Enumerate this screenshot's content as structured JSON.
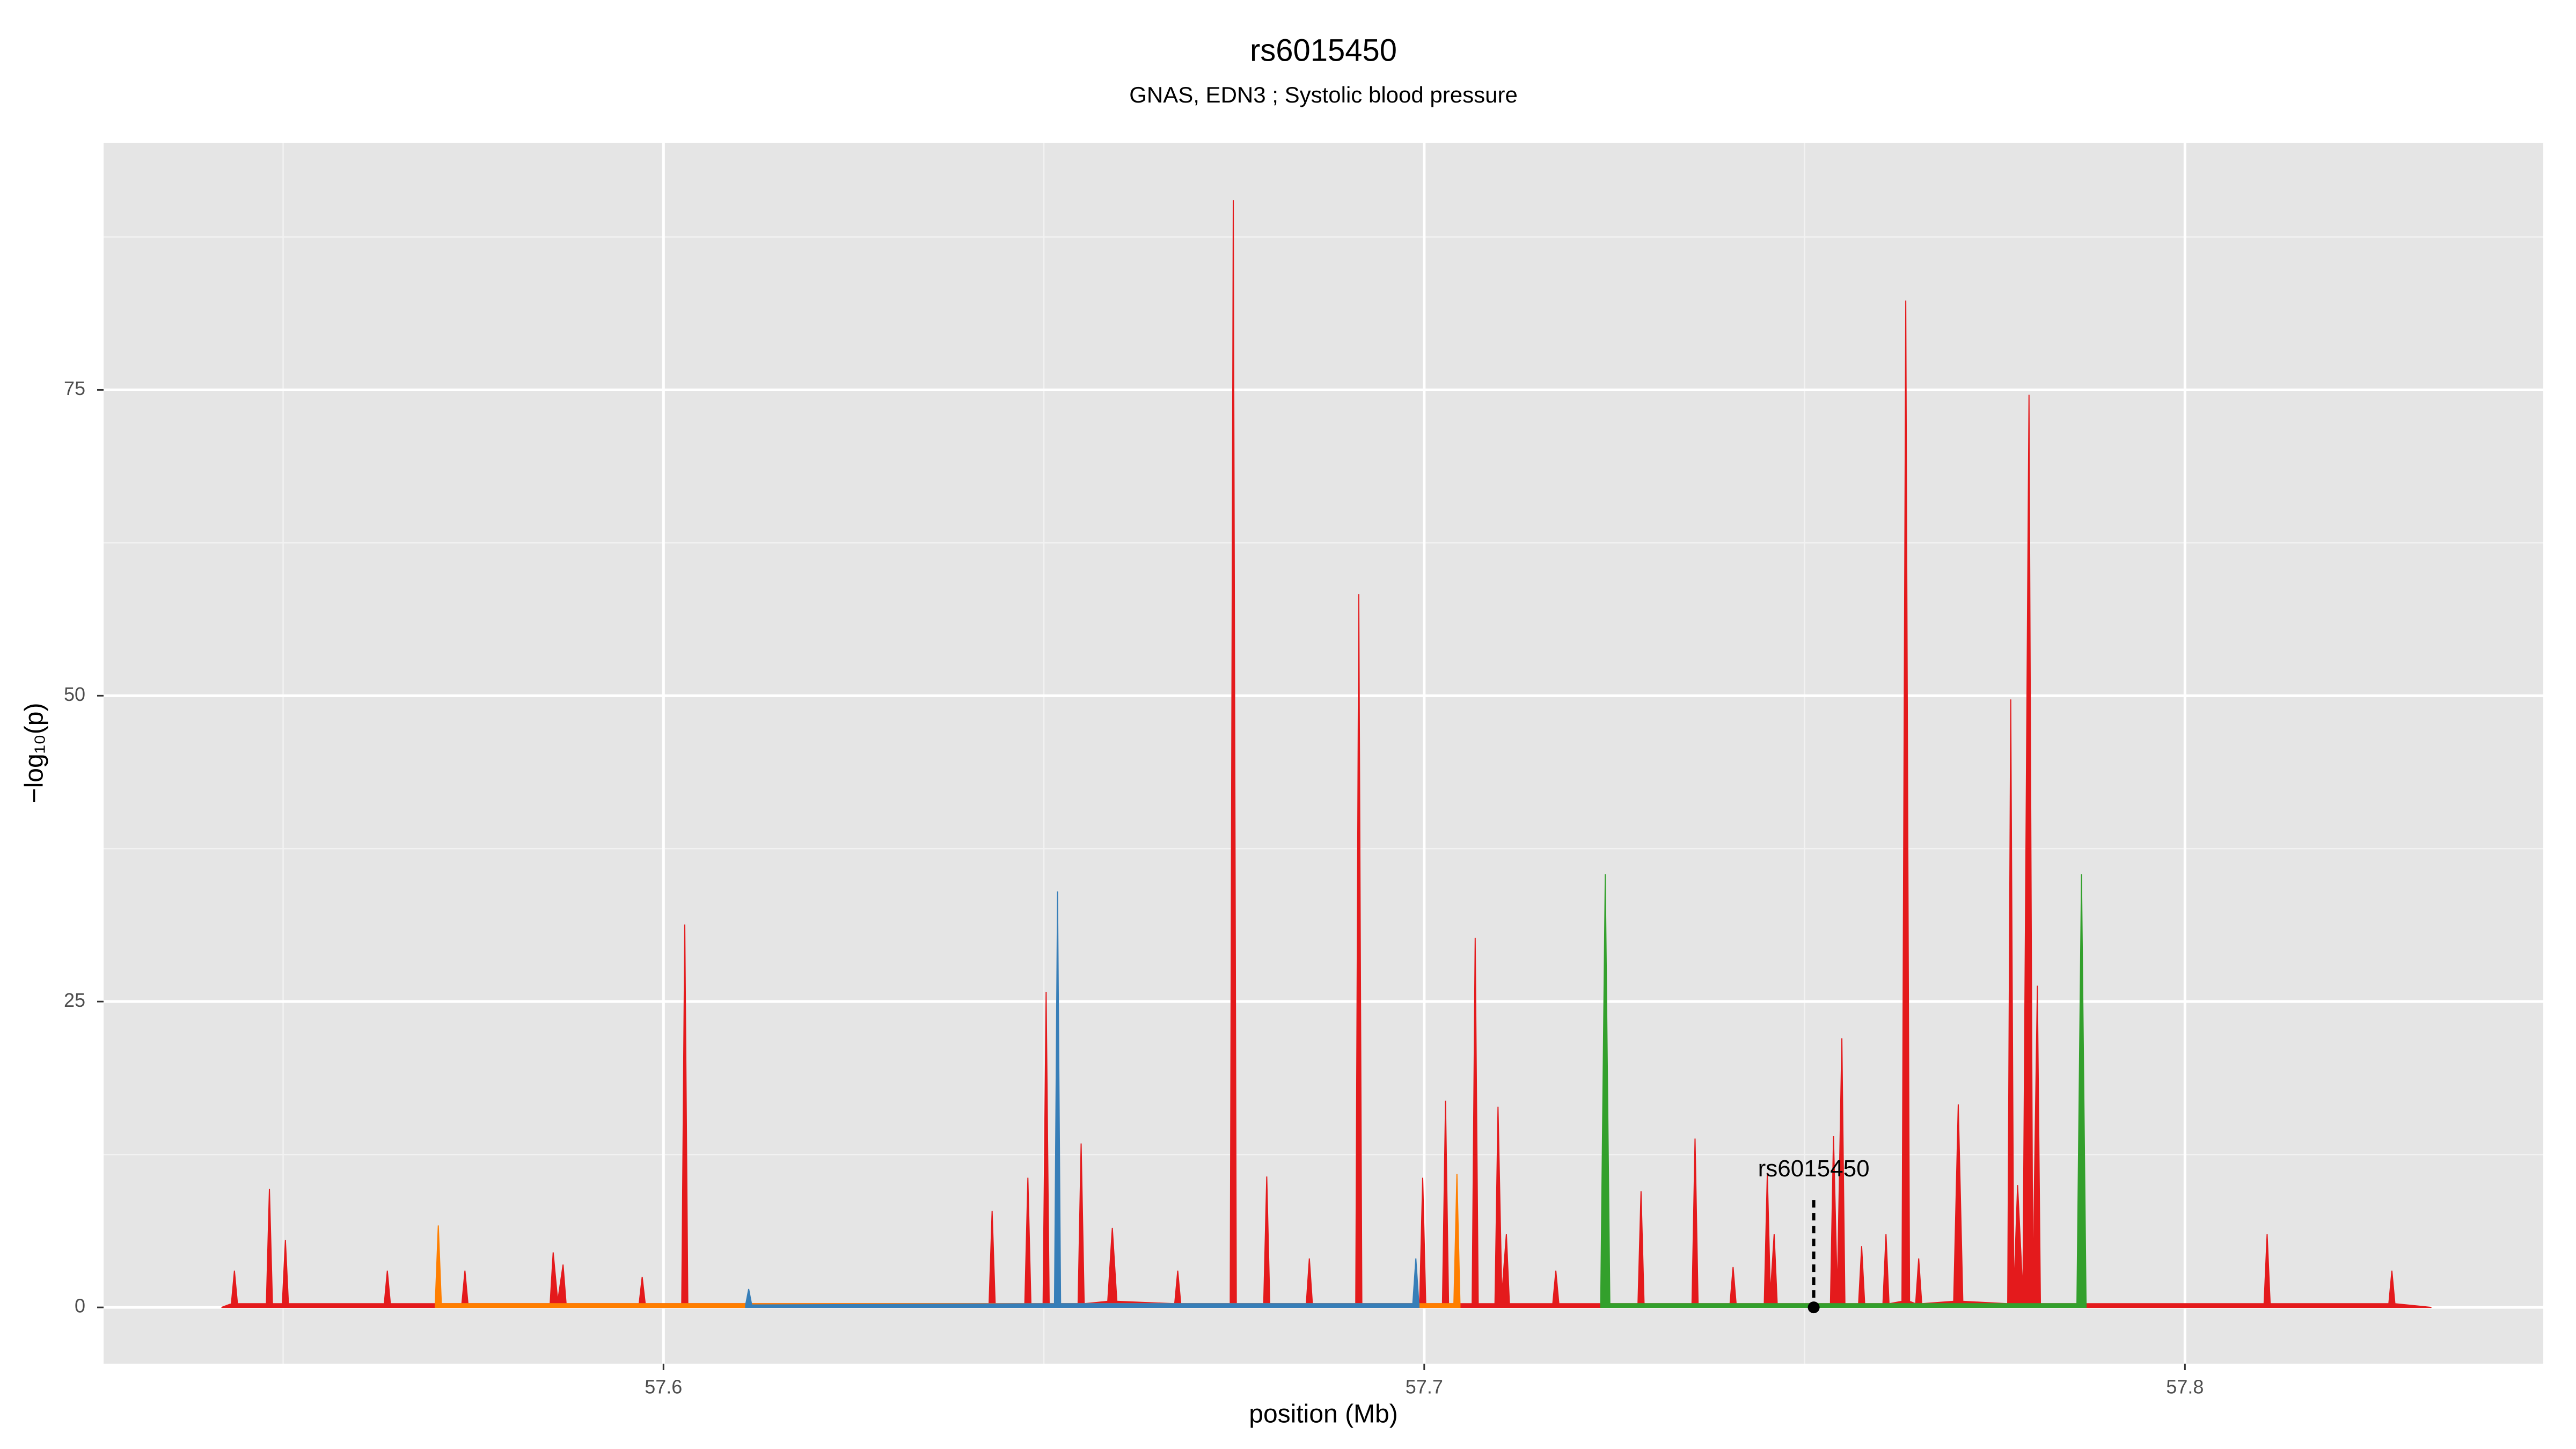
{
  "chart_data": {
    "type": "area",
    "title": "rs6015450",
    "subtitle": "GNAS, EDN3 ; Systolic blood pressure",
    "xlabel": "position (Mb)",
    "ylabel": "−log₁₀(p)",
    "xlim": [
      57.5264,
      57.8471
    ],
    "ylim": [
      -4.6,
      95.2
    ],
    "xticks": [
      57.6,
      57.7,
      57.8
    ],
    "yticks": [
      0,
      25,
      50,
      75
    ],
    "x_minor_ticks": [
      57.55,
      57.65,
      57.75
    ],
    "y_minor_ticks": [
      12.5,
      37.5,
      62.5,
      87.5
    ],
    "grid": true,
    "series": [
      {
        "color": "#e41a1c",
        "x": [
          57.5419,
          57.5432,
          57.5436,
          57.544,
          57.5478,
          57.5482,
          57.5486,
          57.5499,
          57.5503,
          57.5507,
          57.5633,
          57.5637,
          57.5641,
          57.5735,
          57.5739,
          57.5743,
          57.5851,
          57.5855,
          57.5861,
          57.5868,
          57.5872,
          57.5968,
          57.5972,
          57.5976,
          57.6024,
          57.6028,
          57.6032,
          57.6428,
          57.6432,
          57.6436,
          57.6475,
          57.6479,
          57.6483,
          57.6499,
          57.6503,
          57.6507,
          57.6545,
          57.6549,
          57.6553,
          57.6584,
          57.659,
          57.6596,
          57.6672,
          57.6676,
          57.668,
          57.6745,
          57.6749,
          57.6753,
          57.6789,
          57.6793,
          57.6797,
          57.6845,
          57.6849,
          57.6853,
          57.691,
          57.6914,
          57.6918,
          57.6994,
          57.6998,
          57.7002,
          57.7024,
          57.7028,
          57.7032,
          57.7063,
          57.7067,
          57.7071,
          57.7093,
          57.7097,
          57.7102,
          57.7108,
          57.7112,
          57.7169,
          57.7173,
          57.7177,
          57.7281,
          57.7285,
          57.7289,
          57.7352,
          57.7356,
          57.736,
          57.7402,
          57.7406,
          57.741,
          57.7447,
          57.7451,
          57.7455,
          57.746,
          57.7464,
          57.7534,
          57.7538,
          57.7543,
          57.7549,
          57.7553,
          57.7571,
          57.7575,
          57.7579,
          57.7603,
          57.7607,
          57.7611,
          57.7628,
          57.7633,
          57.7638,
          57.7646,
          57.765,
          57.7654,
          57.7696,
          57.7702,
          57.7708,
          57.7767,
          57.7771,
          57.7775,
          57.778,
          57.7787,
          57.7795,
          57.78,
          57.7806,
          57.781,
          57.8104,
          57.8108,
          57.8112,
          57.8268,
          57.8272,
          57.8276,
          57.8324
        ],
        "values": [
          0,
          0.3,
          3,
          0.3,
          0.3,
          9.7,
          0.3,
          0.3,
          5.5,
          0.3,
          0.3,
          3,
          0.3,
          0.3,
          3,
          0.3,
          0.3,
          4.5,
          0.5,
          3.5,
          0.3,
          0.3,
          2.5,
          0.3,
          0.3,
          31.3,
          0.3,
          0.3,
          7.9,
          0.3,
          0.3,
          10.6,
          0.3,
          0.3,
          25.8,
          0.3,
          0.3,
          13.4,
          0.3,
          0.5,
          6.5,
          0.5,
          0.3,
          3,
          0.3,
          0.3,
          90.5,
          0.3,
          0.3,
          10.7,
          0.3,
          0.3,
          4,
          0.3,
          0.3,
          58.3,
          0.3,
          0.3,
          10.6,
          0.3,
          0.3,
          16.9,
          0.3,
          0.3,
          30.2,
          0.3,
          0.3,
          16.4,
          1,
          6,
          0.3,
          0.3,
          3,
          0.3,
          0.3,
          9.5,
          0.3,
          0.3,
          13.8,
          0.3,
          0.3,
          3.3,
          0.3,
          0.3,
          11,
          1,
          6,
          0.3,
          0.3,
          14,
          1,
          22,
          0.3,
          0.3,
          5,
          0.3,
          0.3,
          6,
          0.3,
          0.5,
          82.3,
          0.5,
          0.3,
          4,
          0.3,
          0.5,
          16.6,
          0.5,
          0.3,
          49.7,
          1,
          10,
          1,
          74.6,
          1,
          26.3,
          0.3,
          0.3,
          6,
          0.3,
          0.3,
          3,
          0.3,
          0
        ]
      },
      {
        "color": "#ff7f00",
        "x": [
          57.57,
          57.5704,
          57.5708,
          57.7039,
          57.7043,
          57.7047
        ],
        "values": [
          0.3,
          6.7,
          0.3,
          0.3,
          10.9,
          0.3
        ]
      },
      {
        "color": "#377eb8",
        "x": [
          57.6108,
          57.6112,
          57.6116,
          57.6514,
          57.6518,
          57.6522,
          57.6985,
          57.6989,
          57.6993
        ],
        "values": [
          0.2,
          1.5,
          0.2,
          0.3,
          34,
          0.3,
          0.3,
          4,
          0.3
        ]
      },
      {
        "color": "#33a02c",
        "x": [
          57.7232,
          57.7238,
          57.7244,
          57.7858,
          57.7864,
          57.787
        ],
        "values": [
          0.3,
          35.4,
          0.3,
          0.3,
          35.4,
          0.3
        ]
      }
    ],
    "annotations": [
      {
        "text": "rs6015450",
        "x": 57.7512,
        "y": 0
      }
    ]
  }
}
